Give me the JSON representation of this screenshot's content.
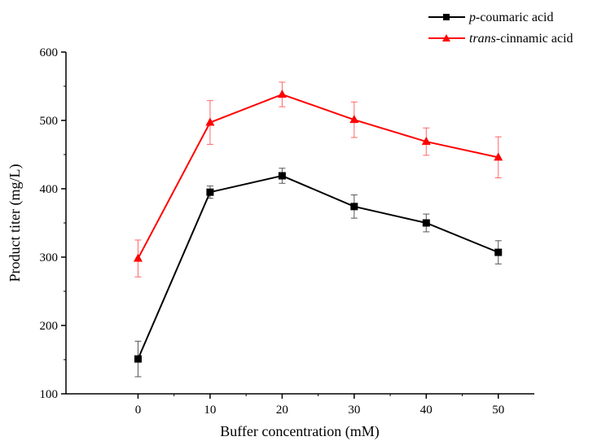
{
  "chart_data": {
    "type": "line",
    "xlabel": "Buffer concentration (mM)",
    "ylabel": "Product titer (mg/L)",
    "x": [
      0,
      10,
      20,
      30,
      40,
      50
    ],
    "xlim": [
      -10,
      55
    ],
    "ylim": [
      100,
      600
    ],
    "xticks": [
      0,
      10,
      20,
      30,
      40,
      50
    ],
    "yticks": [
      100,
      200,
      300,
      400,
      500,
      600
    ],
    "grid": false,
    "legend_position": "top-right",
    "series": [
      {
        "name_prefix": "p",
        "name_suffix": "-coumaric acid",
        "color": "#000000",
        "marker": "square",
        "values": [
          151,
          395,
          419,
          374,
          350,
          307
        ],
        "errors": [
          26,
          9,
          11,
          17,
          13,
          17
        ]
      },
      {
        "name_prefix": "trans",
        "name_suffix": "-cinnamic acid",
        "color": "#ff0000",
        "marker": "triangle",
        "values": [
          298,
          497,
          538,
          501,
          469,
          446
        ],
        "errors": [
          27,
          32,
          18,
          26,
          20,
          30
        ]
      }
    ]
  }
}
